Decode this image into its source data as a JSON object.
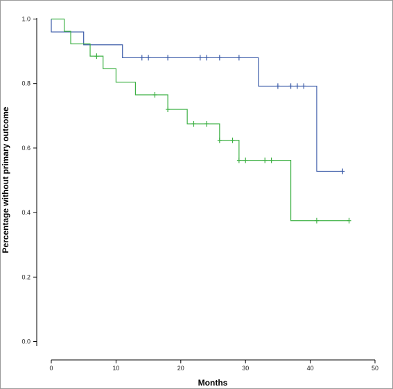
{
  "chart_data": {
    "type": "line",
    "subtype": "kaplan-meier-step",
    "title": "",
    "xlabel": "Months",
    "ylabel": "Percentage without primary outcome",
    "xlim": [
      0,
      50
    ],
    "ylim": [
      0,
      1.0
    ],
    "x_ticks": [
      0,
      10,
      20,
      30,
      40,
      50
    ],
    "y_ticks": [
      0.0,
      0.2,
      0.4,
      0.6,
      0.8,
      1.0
    ],
    "x_tick_labels": [
      "0",
      "10",
      "20",
      "30",
      "40",
      "50"
    ],
    "y_tick_labels": [
      "0.0",
      "0.2",
      "0.4",
      "0.6",
      "0.8",
      "1.0"
    ],
    "grid": false,
    "legend": "none",
    "series": [
      {
        "color": "#3b5ba8",
        "steps": [
          [
            0,
            1.0
          ],
          [
            0,
            0.96
          ],
          [
            5,
            0.92
          ],
          [
            11,
            0.88
          ],
          [
            32,
            0.792
          ],
          [
            41,
            0.528
          ],
          [
            45,
            0.528
          ]
        ],
        "censored": [
          [
            14,
            0.88
          ],
          [
            15,
            0.88
          ],
          [
            18,
            0.88
          ],
          [
            23,
            0.88
          ],
          [
            24,
            0.88
          ],
          [
            26,
            0.88
          ],
          [
            29,
            0.88
          ],
          [
            35,
            0.792
          ],
          [
            37,
            0.792
          ],
          [
            38,
            0.792
          ],
          [
            39,
            0.792
          ],
          [
            45,
            0.528
          ]
        ]
      },
      {
        "color": "#3cb043",
        "steps": [
          [
            0,
            1.0
          ],
          [
            2,
            0.962
          ],
          [
            3,
            0.923
          ],
          [
            6,
            0.885
          ],
          [
            8,
            0.846
          ],
          [
            10,
            0.804
          ],
          [
            13,
            0.765
          ],
          [
            18,
            0.72
          ],
          [
            21,
            0.675
          ],
          [
            26,
            0.624
          ],
          [
            29,
            0.562
          ],
          [
            37,
            0.375
          ],
          [
            46,
            0.375
          ]
        ],
        "censored": [
          [
            7,
            0.885
          ],
          [
            16,
            0.765
          ],
          [
            18,
            0.72
          ],
          [
            22,
            0.675
          ],
          [
            24,
            0.675
          ],
          [
            26,
            0.624
          ],
          [
            28,
            0.624
          ],
          [
            29,
            0.562
          ],
          [
            30,
            0.562
          ],
          [
            33,
            0.562
          ],
          [
            34,
            0.562
          ],
          [
            41,
            0.375
          ],
          [
            46,
            0.375
          ]
        ]
      }
    ]
  }
}
